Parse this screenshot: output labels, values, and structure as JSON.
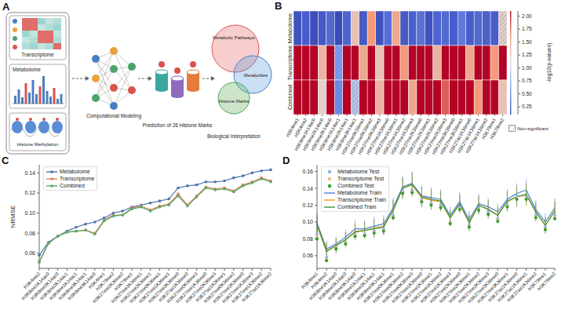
{
  "diagram": {
    "letter": "A",
    "inputs": [
      "Transcriptome",
      "Metabolome",
      "Histone Methylation"
    ],
    "model": "Computational Modeling",
    "prediction": "Prediction of 26 Histone Marks",
    "circles": [
      "Metabolic Pathways",
      "Metabolites",
      "Histone Marks"
    ],
    "interpretation": "Biological Interpretation"
  },
  "chart_data": [
    {
      "letter": "B",
      "type": "heatmap",
      "rows": [
        "Metabolome",
        "Transcriptome",
        "Combined"
      ],
      "categories": [
        "H3K4me1",
        "H3K4me2",
        "H3K9me1K14ac0",
        "H3K9me2K14ac0",
        "H3K9me3K14ac0",
        "H3K9me1K14ac1",
        "H3K9me2K14ac1",
        "H3K9me3K14ac1",
        "H3K27me0K36me1",
        "H3K27me0K36me2",
        "H3K27me0K36me3",
        "H3K27me1K36me0",
        "H3K27me1K36me1",
        "H3K27me1K36me2",
        "H3K27me1K36me3",
        "H3K27me2K36me0",
        "H3K27me2K36me1",
        "H3K27me2K36me2",
        "H3K27me2K36me3",
        "H3K27me3K36me0",
        "H3K27me3K36me1",
        "H3K27ac1K36me0",
        "H3K27ac1K36me1",
        "H3K27ac1K36me2",
        "H3K79me1",
        "H3K79me2"
      ],
      "cells": [
        [
          0.15,
          0.2,
          0.12,
          0.18,
          0.3,
          0.1,
          0.25,
          1.3,
          0.2,
          1.6,
          0.15,
          0.3,
          1.5,
          0.2,
          0.22,
          0.35,
          0.15,
          0.25,
          0.3,
          0.2,
          0.4,
          0.2,
          0.3,
          0.25,
          0.2,
          1.2
        ],
        [
          2.1,
          2.1,
          2.1,
          1.4,
          2.1,
          0.6,
          2.1,
          2.1,
          1.5,
          2.1,
          1.3,
          2.1,
          2.1,
          1.6,
          2.1,
          2.1,
          2.1,
          1.4,
          2.1,
          2.1,
          2.1,
          1.5,
          2.1,
          2.1,
          1.6,
          2.1
        ],
        [
          2.1,
          2.1,
          2.1,
          1.2,
          2.1,
          0.5,
          2.1,
          0.9,
          2.1,
          2.1,
          1.4,
          2.1,
          2.1,
          2.1,
          1.5,
          2.1,
          2.1,
          2.1,
          1.8,
          2.1,
          2.1,
          2.1,
          1.6,
          2.1,
          2.1,
          1.3
        ]
      ],
      "non_significant": [
        [
          true,
          false,
          true,
          false,
          true,
          true,
          false,
          false,
          true,
          false,
          true,
          false,
          false,
          true,
          false,
          true,
          true,
          false,
          true,
          false,
          true,
          false,
          true,
          true,
          false,
          true
        ],
        [
          false,
          false,
          false,
          false,
          false,
          true,
          false,
          false,
          false,
          false,
          false,
          false,
          false,
          false,
          false,
          false,
          false,
          false,
          false,
          false,
          false,
          false,
          false,
          false,
          false,
          false
        ],
        [
          false,
          false,
          false,
          false,
          false,
          true,
          false,
          true,
          false,
          false,
          false,
          false,
          false,
          false,
          false,
          false,
          false,
          false,
          false,
          false,
          false,
          false,
          false,
          false,
          false,
          false
        ]
      ],
      "colorbar": {
        "label": "-log10(p-values)",
        "range": [
          0.1,
          2.1
        ],
        "ticks": [
          0.25,
          {
            "value": 0.5,
            "label": "0.50"
          },
          0.75,
          {
            "value": 1,
            "label": "1.00"
          },
          1.25,
          {
            "value": 1.5,
            "label": "1.50"
          },
          1.75,
          {
            "value": 2,
            "label": "2.00"
          }
        ]
      },
      "hatch_label": "Non-significant",
      "legend": "lower right"
    },
    {
      "letter": "C",
      "type": "line",
      "y_label": "NRMSE",
      "marker": "circle",
      "grid": false,
      "legend": "upper left",
      "categories": [
        "H3K4me2",
        "H3K9me1K14ac0",
        "H3K9me2K14ac0",
        "H3K9me2K14ac1",
        "H3K9me1K14ac1",
        "H3K9me3K14ac1",
        "H3K9me3K14ac0",
        "H3K4me1",
        "H3K79me2",
        "H3K27me2K36me2",
        "H3K79me1",
        "H3K27me3K36me1",
        "H3K27me2K36me1",
        "H3K27me0K36me1",
        "H3K27me1K36me1",
        "H3K27me3K36me0",
        "H3K27ac1K36me0",
        "H3K27me0K36me3",
        "H3K27me1K36me0",
        "H3K27me2K36me3",
        "H3K27ac1K36me1",
        "H3K27me0K36me2",
        "H3K27me2K36me0",
        "H3K27me1K36me3",
        "H3K27me1K36me2",
        "H3K27ac1K36me2"
      ],
      "ylim": [
        0.045,
        0.148
      ],
      "yticks": [
        0.06,
        0.08,
        {
          "value": 0.1,
          "label": "0.10"
        },
        0.12,
        0.14
      ],
      "series": [
        {
          "name": "Metabolome",
          "color": "#4c72b0",
          "values": [
            0.058,
            0.071,
            0.077,
            0.082,
            0.086,
            0.089,
            0.091,
            0.095,
            0.1,
            0.102,
            0.106,
            0.108,
            0.11,
            0.112,
            0.114,
            0.125,
            0.127,
            0.128,
            0.131,
            0.131,
            0.132,
            0.135,
            0.137,
            0.14,
            0.142,
            0.143
          ]
        },
        {
          "name": "Transcriptome",
          "color": "#dd8452",
          "values": [
            0.052,
            0.07,
            0.077,
            0.081,
            0.082,
            0.083,
            0.08,
            0.093,
            0.098,
            0.098,
            0.105,
            0.107,
            0.103,
            0.107,
            0.109,
            0.119,
            0.108,
            0.117,
            0.126,
            0.124,
            0.125,
            0.122,
            0.128,
            0.131,
            0.135,
            0.132
          ]
        },
        {
          "name": "Combined",
          "color": "#55a868",
          "values": [
            0.051,
            0.07,
            0.077,
            0.081,
            0.082,
            0.083,
            0.079,
            0.092,
            0.097,
            0.098,
            0.104,
            0.106,
            0.102,
            0.106,
            0.108,
            0.117,
            0.107,
            0.116,
            0.125,
            0.123,
            0.124,
            0.121,
            0.127,
            0.13,
            0.134,
            0.131
          ]
        }
      ]
    },
    {
      "letter": "D",
      "type": "line",
      "grid": false,
      "legend": "upper left",
      "categories": [
        "H3K4me1",
        "H3K4me2",
        "H3K9me1K14ac0",
        "H3K9me2K14ac0",
        "H3K9me3K14ac0",
        "H3K9me1K14ac1",
        "H3K9me2K14ac1",
        "H3K9me3K14ac1",
        "H3K27me0K36me1",
        "H3K27me0K36me2",
        "H3K27me0K36me3",
        "H3K27me1K36me0",
        "H3K27me1K36me1",
        "H3K27me1K36me2",
        "H3K27me1K36me3",
        "H3K27me2K36me0",
        "H3K27me2K36me1",
        "H3K27me2K36me2",
        "H3K27me2K36me3",
        "H3K27me3K36me0",
        "H3K27me3K36me1",
        "H3K27ac1K36me0",
        "H3K27ac1K36me1",
        "H3K27ac1K36me2",
        "H3K79me1",
        "H3K79me2"
      ],
      "ylim": [
        0.045,
        0.168
      ],
      "yticks": [
        0.06,
        0.08,
        {
          "value": 0.1,
          "label": "0.10"
        },
        0.12,
        0.14,
        0.16
      ],
      "series": [
        {
          "name": "Metabolome Test",
          "type": "scatter",
          "color": "#8db4e2",
          "values": [
            0.085,
            0.058,
            0.07,
            0.076,
            0.085,
            0.086,
            0.09,
            0.092,
            0.108,
            0.137,
            0.138,
            0.127,
            0.123,
            0.12,
            0.1,
            0.118,
            0.097,
            0.117,
            0.112,
            0.104,
            0.121,
            0.131,
            0.13,
            0.108,
            0.094,
            0.108
          ]
        },
        {
          "name": "Transcriptome Test",
          "type": "scatter",
          "color": "#f5b887",
          "values": [
            0.082,
            0.055,
            0.069,
            0.075,
            0.084,
            0.085,
            0.088,
            0.09,
            0.106,
            0.135,
            0.136,
            0.125,
            0.121,
            0.118,
            0.099,
            0.116,
            0.095,
            0.115,
            0.11,
            0.102,
            0.119,
            0.128,
            0.128,
            0.106,
            0.092,
            0.105
          ]
        },
        {
          "name": "Combined Test",
          "type": "scatter",
          "color": "#2ca02c",
          "values": [
            0.08,
            0.054,
            0.068,
            0.074,
            0.083,
            0.084,
            0.087,
            0.089,
            0.105,
            0.134,
            0.135,
            0.124,
            0.12,
            0.117,
            0.098,
            0.115,
            0.094,
            0.114,
            0.109,
            0.101,
            0.118,
            0.127,
            0.127,
            0.105,
            0.091,
            0.104
          ]
        },
        {
          "name": "Metabolome Train",
          "type": "line",
          "color": "#4f81d4",
          "values": [
            0.099,
            0.068,
            0.074,
            0.082,
            0.092,
            0.092,
            0.095,
            0.098,
            0.117,
            0.142,
            0.146,
            0.131,
            0.129,
            0.127,
            0.108,
            0.124,
            0.103,
            0.122,
            0.118,
            0.112,
            0.127,
            0.134,
            0.138,
            0.115,
            0.1,
            0.117
          ],
          "errors": [
            0.011,
            0.01,
            0.009,
            0.009,
            0.01,
            0.01,
            0.011,
            0.01,
            0.012,
            0.013,
            0.014,
            0.012,
            0.012,
            0.012,
            0.01,
            0.011,
            0.01,
            0.011,
            0.011,
            0.01,
            0.012,
            0.012,
            0.013,
            0.011,
            0.01,
            0.011
          ]
        },
        {
          "name": "Transcriptome Train",
          "type": "line",
          "color": "#f39c12",
          "values": [
            0.096,
            0.066,
            0.072,
            0.079,
            0.089,
            0.09,
            0.093,
            0.095,
            0.114,
            0.14,
            0.144,
            0.129,
            0.126,
            0.124,
            0.105,
            0.121,
            0.1,
            0.12,
            0.115,
            0.108,
            0.124,
            0.13,
            0.132,
            0.112,
            0.096,
            0.114
          ],
          "errors": [
            0.011,
            0.01,
            0.009,
            0.009,
            0.01,
            0.01,
            0.011,
            0.01,
            0.012,
            0.013,
            0.014,
            0.012,
            0.012,
            0.012,
            0.01,
            0.011,
            0.01,
            0.011,
            0.011,
            0.01,
            0.012,
            0.012,
            0.013,
            0.011,
            0.01,
            0.011
          ]
        },
        {
          "name": "Combined Train",
          "type": "line",
          "color": "#3a923a",
          "values": [
            0.097,
            0.065,
            0.072,
            0.079,
            0.088,
            0.09,
            0.092,
            0.094,
            0.114,
            0.14,
            0.145,
            0.13,
            0.127,
            0.125,
            0.105,
            0.122,
            0.099,
            0.12,
            0.115,
            0.108,
            0.125,
            0.13,
            0.133,
            0.112,
            0.096,
            0.113
          ],
          "errors": [
            0.011,
            0.01,
            0.009,
            0.009,
            0.01,
            0.01,
            0.011,
            0.01,
            0.012,
            0.013,
            0.014,
            0.012,
            0.012,
            0.012,
            0.01,
            0.011,
            0.01,
            0.011,
            0.011,
            0.01,
            0.012,
            0.012,
            0.013,
            0.011,
            0.01,
            0.011
          ]
        }
      ]
    }
  ]
}
